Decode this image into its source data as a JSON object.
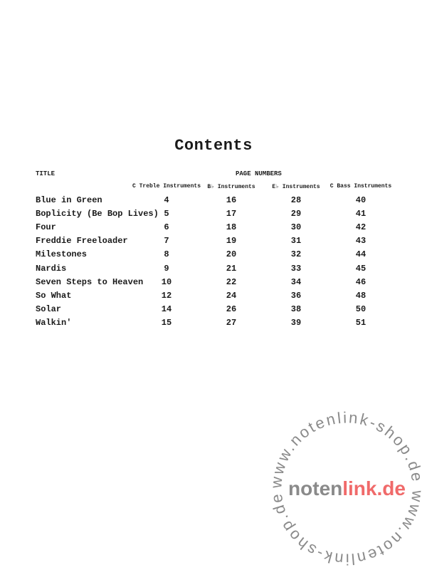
{
  "heading": "Contents",
  "header": {
    "title_label": "TITLE",
    "page_numbers_label": "PAGE NUMBERS"
  },
  "columns": [
    "C Treble Instruments",
    "B♭ Instruments",
    "E♭ Instruments",
    "C Bass Instruments"
  ],
  "rows": [
    {
      "title": "Blue in Green",
      "pages": [
        "4",
        "16",
        "28",
        "40"
      ]
    },
    {
      "title": "Boplicity (Be Bop Lives)",
      "pages": [
        "5",
        "17",
        "29",
        "41"
      ]
    },
    {
      "title": "Four",
      "pages": [
        "6",
        "18",
        "30",
        "42"
      ]
    },
    {
      "title": "Freddie Freeloader",
      "pages": [
        "7",
        "19",
        "31",
        "43"
      ]
    },
    {
      "title": "Milestones",
      "pages": [
        "8",
        "20",
        "32",
        "44"
      ]
    },
    {
      "title": "Nardis",
      "pages": [
        "9",
        "21",
        "33",
        "45"
      ]
    },
    {
      "title": "Seven Steps to Heaven",
      "pages": [
        "10",
        "22",
        "34",
        "46"
      ]
    },
    {
      "title": "So What",
      "pages": [
        "12",
        "24",
        "36",
        "48"
      ]
    },
    {
      "title": "Solar",
      "pages": [
        "14",
        "26",
        "38",
        "50"
      ]
    },
    {
      "title": "Walkin'",
      "pages": [
        "15",
        "27",
        "39",
        "51"
      ]
    }
  ],
  "watermark": {
    "ring_text": "www.notenlink-shop.de  www.notenlink-shop.de  ",
    "center_gray": "noten",
    "center_red": "link.de",
    "gray": "#8a8a8a",
    "red": "#f06a6a"
  }
}
